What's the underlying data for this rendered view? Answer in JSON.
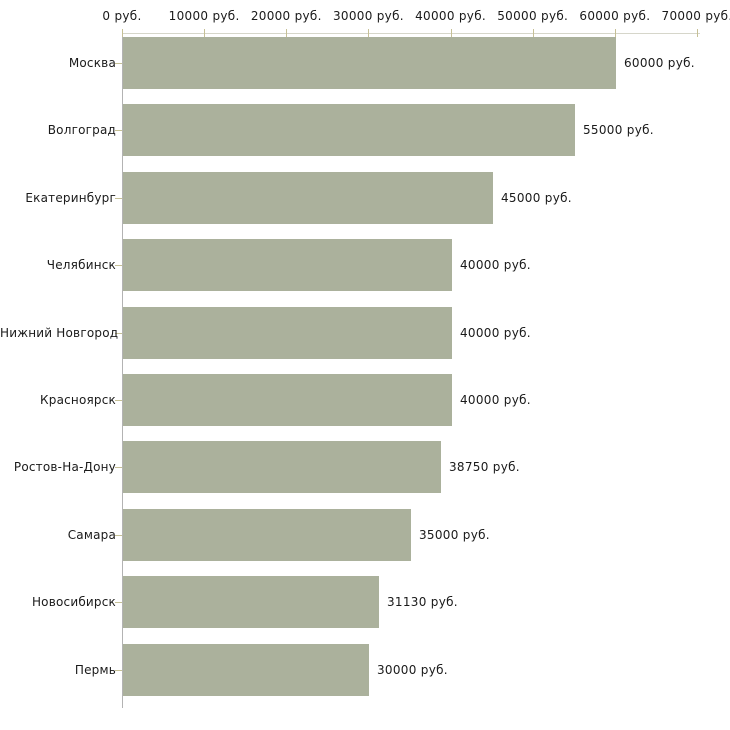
{
  "chart_data": {
    "type": "bar",
    "orientation": "horizontal",
    "title": "",
    "xlabel": "",
    "ylabel": "",
    "categories": [
      "Москва",
      "Волгоград",
      "Екатеринбург",
      "Челябинск",
      "Нижний Новгород",
      "Красноярск",
      "Ростов-На-Дону",
      "Самара",
      "Новосибирск",
      "Пермь"
    ],
    "values": [
      60000,
      55000,
      45000,
      40000,
      40000,
      40000,
      38750,
      35000,
      31130,
      30000
    ],
    "bar_labels": [
      "60000 руб.",
      "55000 руб.",
      "45000 руб.",
      "40000 руб.",
      "40000 руб.",
      "40000 руб.",
      "38750 руб.",
      "35000 руб.",
      "31130 руб.",
      "30000 руб."
    ],
    "x_ticks": [
      0,
      10000,
      20000,
      30000,
      40000,
      50000,
      60000,
      70000
    ],
    "x_tick_labels": [
      "0 руб.",
      "10000 руб.",
      "20000 руб.",
      "30000 руб.",
      "40000 руб.",
      "50000 руб.",
      "60000 руб.",
      "70000 руб."
    ],
    "xlim": [
      0,
      70000
    ],
    "value_suffix": " руб.",
    "grid": false,
    "legend": "none",
    "axis_position": "top",
    "colors": {
      "bar": "#abb19c",
      "axis_line_h": "#d6d6ca",
      "axis_line_v": "#b3b3b3",
      "tick": "#c6c096",
      "text": "#1a1a1a",
      "background": "#ffffff"
    }
  }
}
